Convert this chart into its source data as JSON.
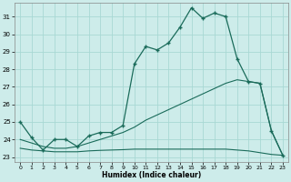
{
  "title": "",
  "xlabel": "Humidex (Indice chaleur)",
  "ylabel": "",
  "bg_color": "#cdecea",
  "grid_color": "#a8d8d4",
  "line_color": "#1a6b5a",
  "xlim": [
    -0.5,
    23.5
  ],
  "ylim": [
    22.7,
    31.8
  ],
  "xticks": [
    0,
    1,
    2,
    3,
    4,
    5,
    6,
    7,
    8,
    9,
    10,
    11,
    12,
    13,
    14,
    15,
    16,
    17,
    18,
    19,
    20,
    21,
    22,
    23
  ],
  "yticks": [
    23,
    24,
    25,
    26,
    27,
    28,
    29,
    30,
    31
  ],
  "line1_x": [
    0,
    1,
    2,
    3,
    4,
    5,
    6,
    7,
    8,
    9,
    10,
    11,
    12,
    13,
    14,
    15,
    16,
    17,
    18,
    19,
    20,
    21,
    22,
    23
  ],
  "line1_y": [
    25.0,
    24.1,
    23.4,
    24.0,
    24.0,
    23.6,
    24.2,
    24.4,
    24.4,
    24.8,
    28.3,
    29.3,
    29.1,
    29.5,
    30.4,
    31.5,
    30.9,
    31.2,
    31.0,
    28.6,
    27.3,
    27.2,
    24.5,
    23.1
  ],
  "line2_x": [
    0,
    1,
    2,
    3,
    4,
    5,
    6,
    7,
    8,
    9,
    10,
    11,
    12,
    13,
    14,
    15,
    16,
    17,
    18,
    19,
    20,
    21,
    22,
    23
  ],
  "line2_y": [
    24.0,
    23.8,
    23.6,
    23.5,
    23.5,
    23.6,
    23.8,
    24.0,
    24.2,
    24.4,
    24.7,
    25.1,
    25.4,
    25.7,
    26.0,
    26.3,
    26.6,
    26.9,
    27.2,
    27.4,
    27.3,
    27.2,
    24.5,
    23.1
  ],
  "line3_x": [
    0,
    1,
    2,
    3,
    4,
    5,
    6,
    7,
    8,
    9,
    10,
    11,
    12,
    13,
    14,
    15,
    16,
    17,
    18,
    19,
    20,
    21,
    22,
    23
  ],
  "line3_y": [
    23.5,
    23.4,
    23.35,
    23.3,
    23.3,
    23.3,
    23.35,
    23.38,
    23.4,
    23.42,
    23.45,
    23.45,
    23.45,
    23.45,
    23.45,
    23.45,
    23.45,
    23.45,
    23.45,
    23.4,
    23.35,
    23.25,
    23.15,
    23.1
  ]
}
